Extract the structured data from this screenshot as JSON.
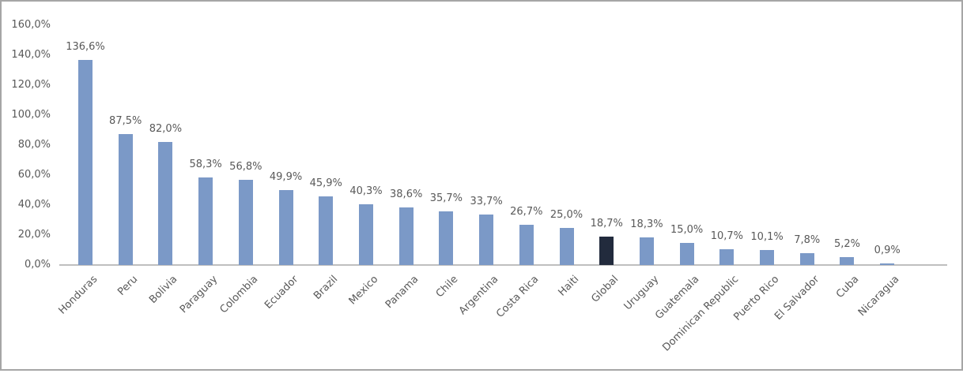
{
  "chart_data": {
    "type": "bar",
    "title": "",
    "xlabel": "",
    "ylabel": "",
    "categories": [
      "Honduras",
      "Peru",
      "Bolivia",
      "Paraguay",
      "Colombia",
      "Ecuador",
      "Brazil",
      "Mexico",
      "Panama",
      "Chile",
      "Argentina",
      "Costa Rica",
      "Haiti",
      "Global",
      "Uruguay",
      "Guatemala",
      "Dominican Republic",
      "Puerto Rico",
      "El Salvador",
      "Cuba",
      "Nicaragua"
    ],
    "values": [
      136.6,
      87.5,
      82.0,
      58.3,
      56.8,
      49.9,
      45.9,
      40.3,
      38.6,
      35.7,
      33.7,
      26.7,
      25.0,
      18.7,
      18.3,
      15.0,
      10.7,
      10.1,
      7.8,
      5.2,
      0.9
    ],
    "data_labels": [
      "136,6%",
      "87,5%",
      "82,0%",
      "58,3%",
      "56,8%",
      "49,9%",
      "45,9%",
      "40,3%",
      "38,6%",
      "35,7%",
      "33,7%",
      "26,7%",
      "25,0%",
      "18,7%",
      "18,3%",
      "15,0%",
      "10,7%",
      "10,1%",
      "7,8%",
      "5,2%",
      "0,9%"
    ],
    "highlight_category": "Global",
    "y_tick_values": [
      0,
      20,
      40,
      60,
      80,
      100,
      120,
      140,
      160
    ],
    "y_tick_labels": [
      "0,0%",
      "20,0%",
      "40,0%",
      "60,0%",
      "80,0%",
      "100,0%",
      "120,0%",
      "140,0%",
      "160,0%"
    ],
    "ylim": [
      0,
      160
    ],
    "grid": false,
    "legend": false,
    "colors": {
      "bar": "#7B99C7",
      "highlight_bar": "#222B3D",
      "label_text": "#595959",
      "axis_line": "#BFBFBF",
      "frame_border": "#A6A6A6",
      "background": "#FFFFFF"
    }
  }
}
